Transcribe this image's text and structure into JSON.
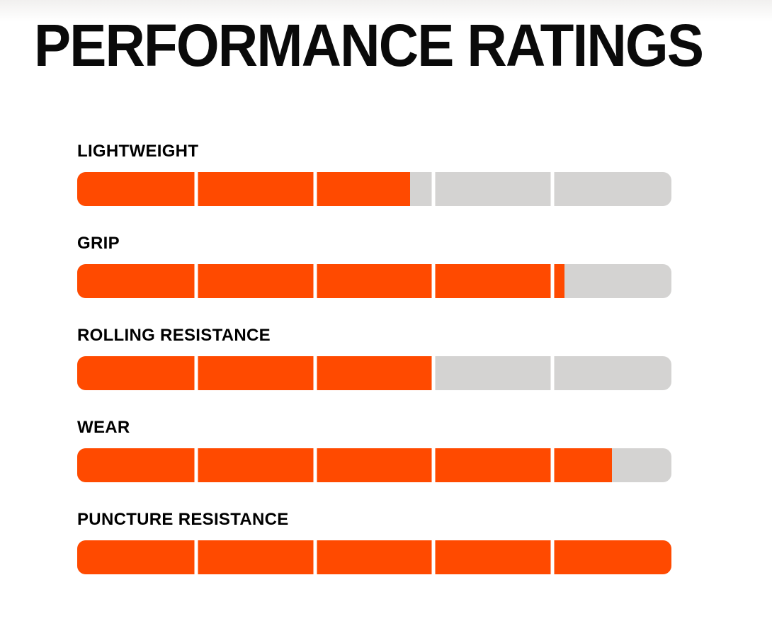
{
  "title": "PERFORMANCE RATINGS",
  "chart_data": {
    "type": "bar",
    "orientation": "horizontal",
    "title": "PERFORMANCE RATINGS",
    "categories": [
      "LIGHTWEIGHT",
      "GRIP",
      "ROLLING RESISTANCE",
      "WEAR",
      "PUNCTURE RESISTANCE"
    ],
    "values": [
      2.8,
      4.1,
      3.0,
      4.5,
      5.0
    ],
    "max_value": 5,
    "segments": 5,
    "fill_percent": [
      56,
      82,
      60,
      90,
      100
    ],
    "legend": false,
    "grid": false,
    "colors": {
      "fill": "#FF4A00",
      "track": "#D4D3D2",
      "divider": "#FFFFFF",
      "text": "#000000"
    }
  }
}
